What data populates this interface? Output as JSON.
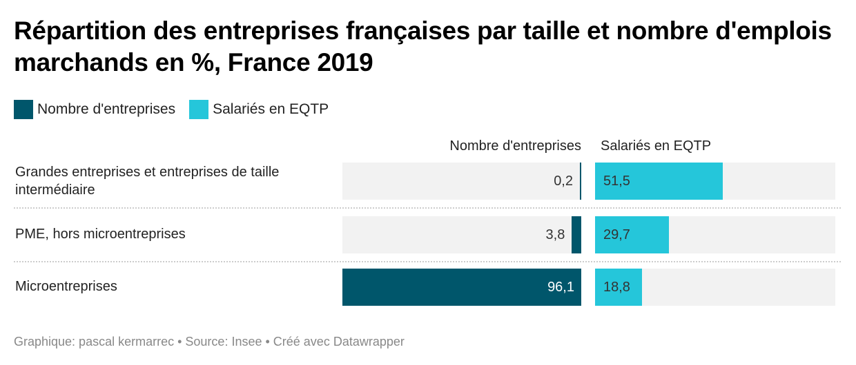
{
  "chart_data": {
    "type": "bar",
    "title": "Répartition des entreprises françaises par taille et nombre d'emplois marchands en %, France 2019",
    "categories": [
      "Grandes entreprises et entreprises de taille intermédiaire",
      "PME, hors microentreprises",
      "Microentreprises"
    ],
    "series": [
      {
        "name": "Nombre d'entreprises",
        "color": "#00566b",
        "values": [
          0.2,
          3.8,
          96.1
        ],
        "labels": [
          "0,2",
          "3,8",
          "96,1"
        ]
      },
      {
        "name": "Salariés en EQTP",
        "color": "#25c6da",
        "values": [
          51.5,
          29.7,
          18.8
        ],
        "labels": [
          "51,5",
          "29,7",
          "18,8"
        ]
      }
    ],
    "xlim": [
      0,
      96.1
    ],
    "legend": "top-left"
  },
  "footer": "Graphique: pascal kermarrec • Source: Insee • Créé avec Datawrapper"
}
